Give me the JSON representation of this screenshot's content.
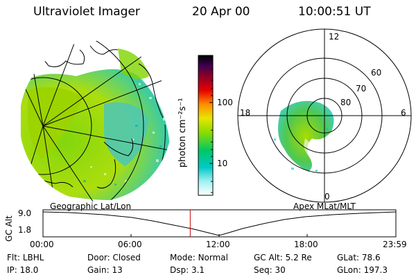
{
  "header": {
    "instrument": "Ultraviolet Imager",
    "date": "20 Apr 00",
    "time": "10:00:51 UT"
  },
  "colorbar": {
    "label": "photon cm⁻²s⁻¹",
    "ticks": [
      {
        "value": 100,
        "label": "100"
      },
      {
        "value": 10,
        "label": "10"
      }
    ]
  },
  "polar_plot": {
    "mlt_labels": [
      "12",
      "18",
      "6",
      "0"
    ],
    "lat_labels": [
      "60",
      "70",
      "80"
    ]
  },
  "timeline": {
    "left_label": "Geographic Lat/Lon",
    "right_label": "Apex MLat/MLT",
    "axis_title": "GC Alt",
    "y_ticks": [
      "9.0",
      "1.8"
    ],
    "x_ticks": [
      "00:00",
      "06:00",
      "12:00",
      "18:00",
      "23:59"
    ],
    "current_time_fraction": 0.4172
  },
  "status": [
    {
      "label": "Flt:",
      "value": "LBHL"
    },
    {
      "label": "Door:",
      "value": "Closed"
    },
    {
      "label": "Mode:",
      "value": "Normal"
    },
    {
      "label": "GC Alt:",
      "value": "5.2 Re"
    },
    {
      "label": "GLat:",
      "value": "78.6"
    },
    {
      "label": "IP:",
      "value": "18.0"
    },
    {
      "label": "Gain:",
      "value": "13"
    },
    {
      "label": "Dsp:",
      "value": "3.1"
    },
    {
      "label": "Seq:",
      "value": "30"
    },
    {
      "label": "GLon:",
      "value": "197.3"
    }
  ],
  "colors": {
    "colorbar_top": "#000000",
    "colorbar_mid": "#ff8c00",
    "colorbar_green": "#8cdc00",
    "colorbar_low": "#00c8c8",
    "time_marker": "#cc0000"
  }
}
